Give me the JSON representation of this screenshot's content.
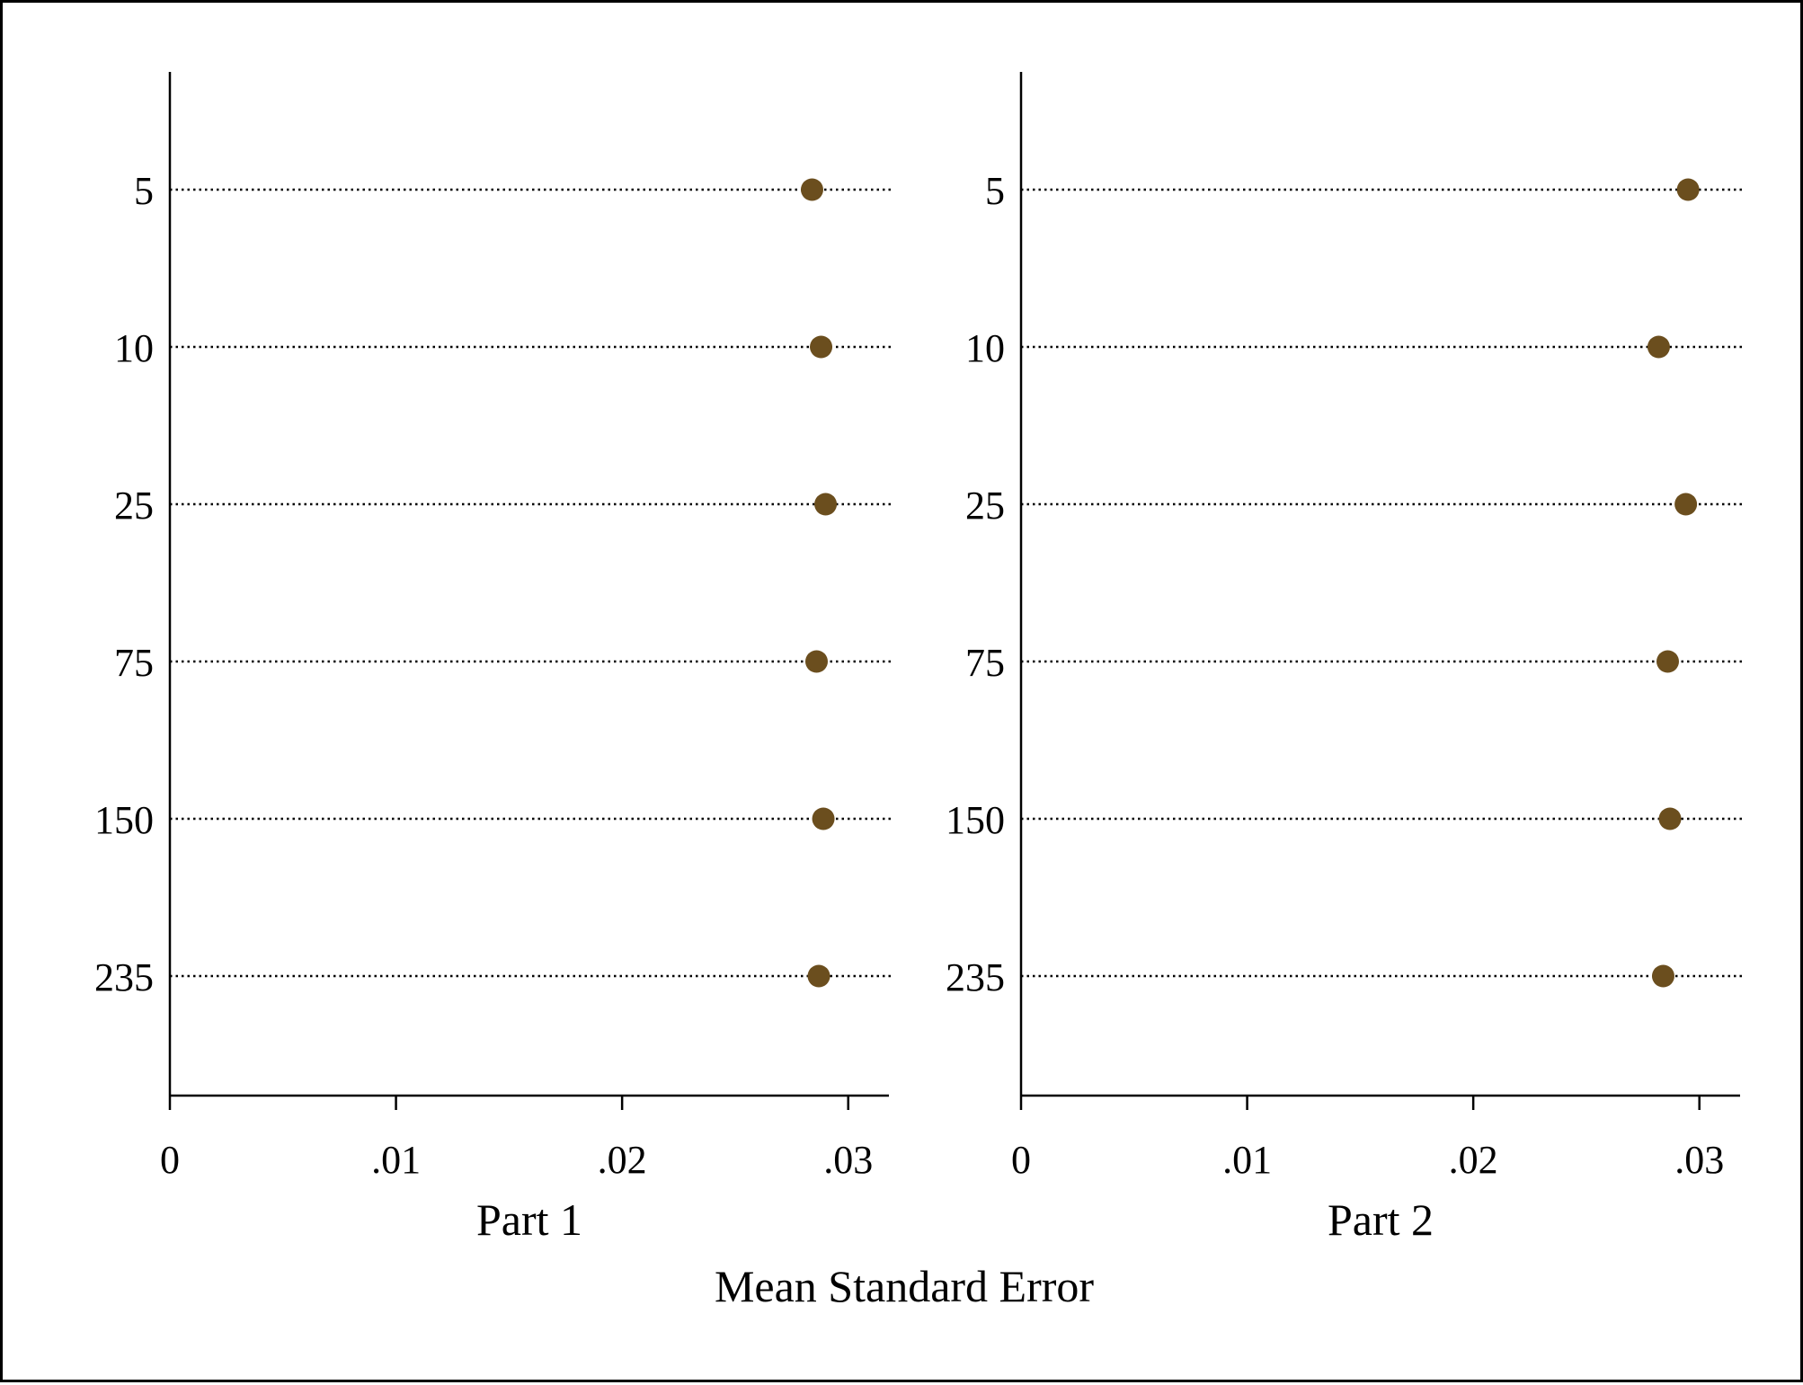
{
  "chart_data": {
    "type": "scatter",
    "subtype": "dot-plot",
    "xlabel": "Mean Standard Error",
    "categories": [
      "5",
      "10",
      "25",
      "75",
      "150",
      "235"
    ],
    "xlim": [
      0,
      0.0318
    ],
    "x_ticks": [
      0,
      0.01,
      0.02,
      0.03
    ],
    "x_tick_labels": [
      "0",
      ".01",
      ".02",
      ".03"
    ],
    "grid": "dotted horizontal guide lines",
    "legend": "none",
    "marker_color": "#6b4e1e",
    "panels": [
      {
        "title": "Part 1",
        "values": [
          0.0284,
          0.0288,
          0.029,
          0.0286,
          0.0289,
          0.0287
        ]
      },
      {
        "title": "Part 2",
        "values": [
          0.0295,
          0.0282,
          0.0294,
          0.0286,
          0.0287,
          0.0284
        ]
      }
    ]
  }
}
